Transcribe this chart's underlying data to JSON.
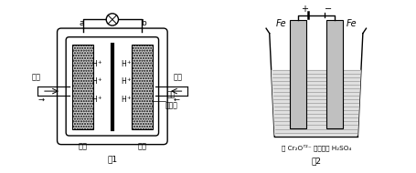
{
  "bg_color": "#ffffff",
  "lc": "#000000",
  "fig1_title": "图1",
  "fig2_title": "图2",
  "label_a": "a",
  "label_b": "b",
  "label_fujia": "负极",
  "label_zhengjia": "正极",
  "label_h2": "氢气",
  "label_air": "空气",
  "label_zhizi": "质子",
  "label_jiaohuanmo": "交换膜",
  "label_fe": "Fe",
  "label_plus": "+",
  "label_minus": "-",
  "label_solution": "含 Cr₂O⁷²⁻ 废水、稀 H₂SO₄",
  "electrode_color": "#c0c0c0",
  "solution_color": "#d8d8d8",
  "hatch_bg": "#d0d0d0"
}
